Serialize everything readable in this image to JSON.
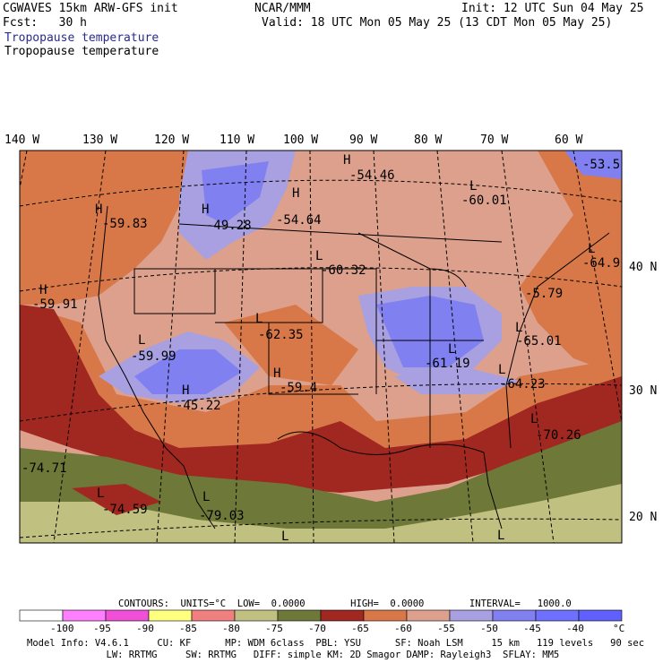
{
  "header": {
    "line1_left": "CGWAVES 15km ARW-GFS init",
    "line2_left": "Fcst:   30 h",
    "org": "NCAR/MMM",
    "init": "Init: 12 UTC Sun 04 May 25",
    "valid": "Valid: 18 UTC Mon 05 May 25 (13 CDT Mon 05 May 25)",
    "field1": "Tropopause temperature",
    "field2": "Tropopause temperature"
  },
  "axes": {
    "lon_labels": [
      "140 W",
      "130 W",
      "120 W",
      "110 W",
      "100 W",
      "90 W",
      "80 W",
      "70 W",
      "60 W"
    ],
    "lat_labels": [
      "40 N",
      "30 N",
      "20 N"
    ]
  },
  "map_labels": [
    {
      "letter": "H",
      "value": "-54.46"
    },
    {
      "letter": "L",
      "value": "-60.01"
    },
    {
      "letter": "",
      "value": "-53.5"
    },
    {
      "letter": "H",
      "value": "-59.83"
    },
    {
      "letter": "H",
      "value": "-49.28"
    },
    {
      "letter": "H",
      "value": "-54.64"
    },
    {
      "letter": "L",
      "value": "-60.32"
    },
    {
      "letter": "L",
      "value": "-64.9"
    },
    {
      "letter": "",
      "value": "-5.79"
    },
    {
      "letter": "H",
      "value": "-59.91"
    },
    {
      "letter": "L",
      "value": "-62.35"
    },
    {
      "letter": "L",
      "value": "-65.01"
    },
    {
      "letter": "L",
      "value": "-59.99"
    },
    {
      "letter": "L",
      "value": "-61.19"
    },
    {
      "letter": "L",
      "value": "-64.23"
    },
    {
      "letter": "H",
      "value": "-59.4"
    },
    {
      "letter": "H",
      "value": "-45.22"
    },
    {
      "letter": "L",
      "value": "-70.26"
    },
    {
      "letter": "",
      "value": "-74.71"
    },
    {
      "letter": "L",
      "value": "-74.59"
    },
    {
      "letter": "L",
      "value": "-79.03"
    },
    {
      "letter": "L",
      "value": ""
    },
    {
      "letter": "L",
      "value": ""
    }
  ],
  "contours": {
    "text": "CONTOURS:  UNITS=°C  LOW=  0.0000        HIGH=  0.0000        INTERVAL=   1000.0"
  },
  "colorbar": {
    "colors": [
      "#ffffff",
      "#ff80ff",
      "#f050d8",
      "#ffff80",
      "#f08080",
      "#c0c080",
      "#6e7838",
      "#a02820",
      "#d87848",
      "#dca08c",
      "#a8a0e0",
      "#8080f0",
      "#7070ff",
      "#6060ff"
    ],
    "labels": [
      "-100",
      "-95",
      "-90",
      "-85",
      "-80",
      "-75",
      "-70",
      "-65",
      "-60",
      "-55",
      "-50",
      "-45",
      "-40",
      "°C"
    ]
  },
  "footer": {
    "line1": "Model Info: V4.6.1     CU: KF      MP: WDM 6class  PBL: YSU      SF: Noah LSM     15 km   119 levels   90 sec",
    "line2": "              LW: RRTMG     SW: RRTMG   DIFF: simple KM: 2D Smagor DAMP: Rayleigh3  SFLAY: MM5"
  }
}
